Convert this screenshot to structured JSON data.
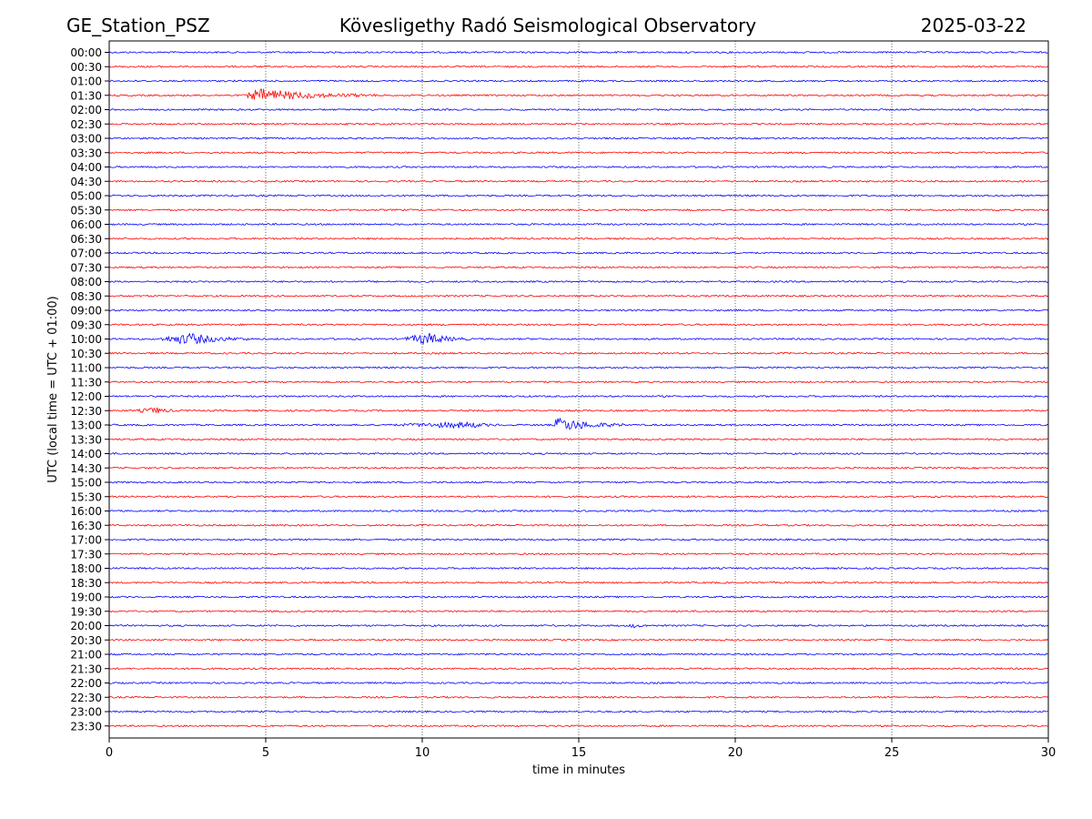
{
  "header": {
    "station": "GE_Station_PSZ",
    "observatory": "Kövesligethy Radó Seismological Observatory",
    "date": "2025-03-22"
  },
  "chart_data": {
    "type": "line",
    "xlabel": "time in minutes",
    "ylabel": "UTC (local time = UTC + 01:00)",
    "xlim": [
      0,
      30
    ],
    "x_ticks": [
      0,
      5,
      10,
      15,
      20,
      25,
      30
    ],
    "x_grid": "dotted vertical lines at 5-minute intervals",
    "trace_colors": [
      "#0000ff",
      "#ff0000"
    ],
    "traces": [
      {
        "label": "00:00"
      },
      {
        "label": "00:30"
      },
      {
        "label": "01:00"
      },
      {
        "label": "01:30",
        "events": [
          {
            "start": 4.3,
            "peak": 4.8,
            "end": 8.5,
            "amp": 7
          }
        ]
      },
      {
        "label": "02:00"
      },
      {
        "label": "02:30"
      },
      {
        "label": "03:00"
      },
      {
        "label": "03:30"
      },
      {
        "label": "04:00"
      },
      {
        "label": "04:30"
      },
      {
        "label": "05:00"
      },
      {
        "label": "05:30"
      },
      {
        "label": "06:00"
      },
      {
        "label": "06:30"
      },
      {
        "label": "07:00"
      },
      {
        "label": "07:30"
      },
      {
        "label": "08:00"
      },
      {
        "label": "08:30"
      },
      {
        "label": "09:00"
      },
      {
        "label": "09:30"
      },
      {
        "label": "10:00",
        "events": [
          {
            "start": 1.5,
            "peak": 2.6,
            "end": 4.5,
            "amp": 6
          },
          {
            "start": 9.3,
            "peak": 10.2,
            "end": 11.5,
            "amp": 6
          }
        ]
      },
      {
        "label": "10:30"
      },
      {
        "label": "11:00"
      },
      {
        "label": "11:30"
      },
      {
        "label": "12:00"
      },
      {
        "label": "12:30",
        "events": [
          {
            "start": 0.8,
            "peak": 1.5,
            "end": 2.2,
            "amp": 3
          }
        ]
      },
      {
        "label": "13:00",
        "events": [
          {
            "start": 9.0,
            "peak": 11.5,
            "end": 12.5,
            "amp": 3
          },
          {
            "start": 14.2,
            "peak": 14.3,
            "end": 16.5,
            "amp": 8
          }
        ]
      },
      {
        "label": "13:30"
      },
      {
        "label": "14:00"
      },
      {
        "label": "14:30"
      },
      {
        "label": "15:00"
      },
      {
        "label": "15:30"
      },
      {
        "label": "16:00"
      },
      {
        "label": "16:30"
      },
      {
        "label": "17:00"
      },
      {
        "label": "17:30"
      },
      {
        "label": "18:00"
      },
      {
        "label": "18:30"
      },
      {
        "label": "19:00"
      },
      {
        "label": "19:30"
      },
      {
        "label": "20:00",
        "events": [
          {
            "start": 16.6,
            "peak": 16.7,
            "end": 17.3,
            "amp": 2
          }
        ]
      },
      {
        "label": "20:30"
      },
      {
        "label": "21:00"
      },
      {
        "label": "21:30"
      },
      {
        "label": "22:00"
      },
      {
        "label": "22:30"
      },
      {
        "label": "23:00"
      },
      {
        "label": "23:30"
      }
    ]
  }
}
